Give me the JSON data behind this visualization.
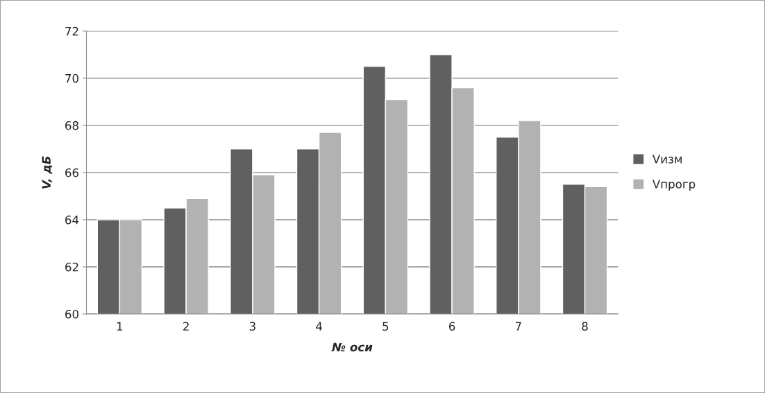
{
  "chart_data": {
    "type": "bar",
    "xlabel": "№ оси",
    "ylabel": "V, дБ",
    "categories": [
      "1",
      "2",
      "3",
      "4",
      "5",
      "6",
      "7",
      "8"
    ],
    "series": [
      {
        "name": "Vизм",
        "color": "#606060",
        "values": [
          64,
          64.5,
          67,
          67,
          70.5,
          71,
          67.5,
          65.5
        ]
      },
      {
        "name": "Vпрогр",
        "color": "#b2b2b2",
        "values": [
          64,
          64.9,
          65.9,
          67.7,
          69.1,
          69.6,
          68.2,
          65.4
        ]
      }
    ],
    "ylim": [
      60,
      72
    ],
    "yticks": [
      60,
      62,
      64,
      66,
      68,
      70,
      72
    ],
    "grid": "y",
    "legend": "right"
  }
}
